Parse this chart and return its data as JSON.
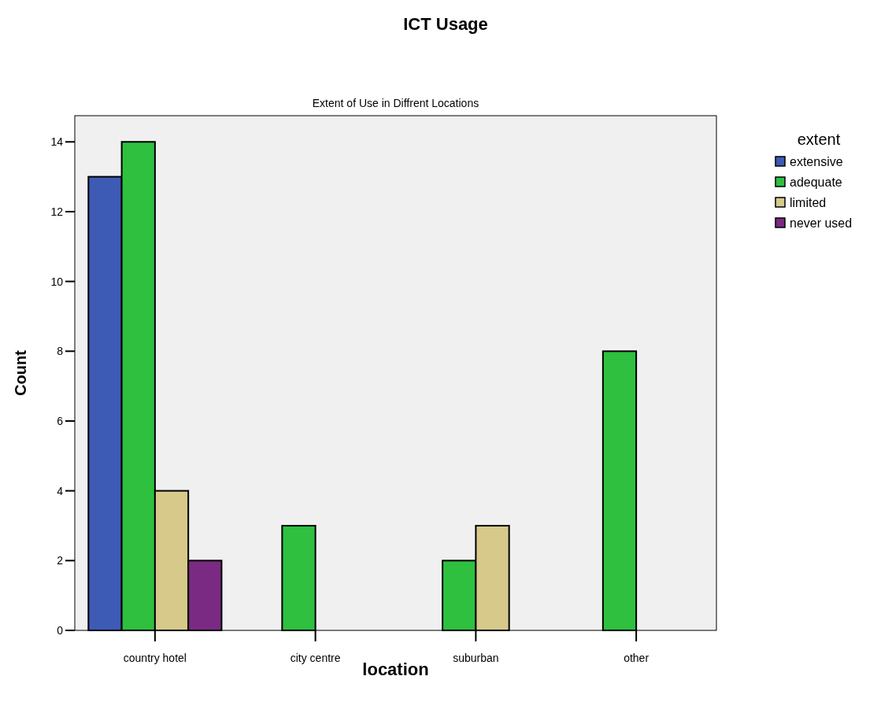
{
  "chart_data": {
    "type": "bar",
    "title": "ICT Usage",
    "subtitle": "Extent of Use in Diffrent Locations",
    "xlabel": "location",
    "ylabel": "Count",
    "legend_title": "extent",
    "categories": [
      "country hotel",
      "city centre",
      "suburban",
      "other"
    ],
    "series": [
      {
        "name": "extensive",
        "color": "#3d5bb5",
        "values": [
          13,
          0,
          0,
          0
        ]
      },
      {
        "name": "adequate",
        "color": "#2fc040",
        "values": [
          14,
          3,
          2,
          8
        ]
      },
      {
        "name": "limited",
        "color": "#d6c98a",
        "values": [
          4,
          0,
          3,
          0
        ]
      },
      {
        "name": "never used",
        "color": "#7a2a82",
        "values": [
          2,
          0,
          0,
          0
        ]
      }
    ],
    "ylim": [
      0,
      14.75
    ],
    "yticks": [
      0,
      2,
      4,
      6,
      8,
      10,
      12,
      14
    ],
    "grid": false,
    "legend": "top right"
  }
}
